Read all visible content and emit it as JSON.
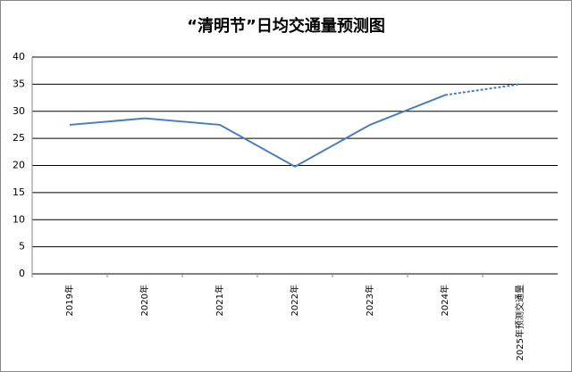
{
  "chart_data": {
    "type": "line",
    "title": "“清明节”日均交通量预测图",
    "categories": [
      "2019年",
      "2020年",
      "2021年",
      "2022年",
      "2023年",
      "2024年",
      "2025年预测交通量"
    ],
    "series": [
      {
        "color": "#4a7ebb",
        "dash": false,
        "values": [
          27.5,
          28.7,
          27.5,
          19.8,
          27.5,
          33,
          null
        ]
      },
      {
        "color": "#4a7ebb",
        "dash": true,
        "values": [
          null,
          null,
          null,
          null,
          null,
          33,
          35
        ]
      }
    ],
    "ylim": [
      0,
      40
    ],
    "yticks": [
      0,
      5,
      10,
      15,
      20,
      25,
      30,
      35,
      40
    ],
    "grid": true
  }
}
